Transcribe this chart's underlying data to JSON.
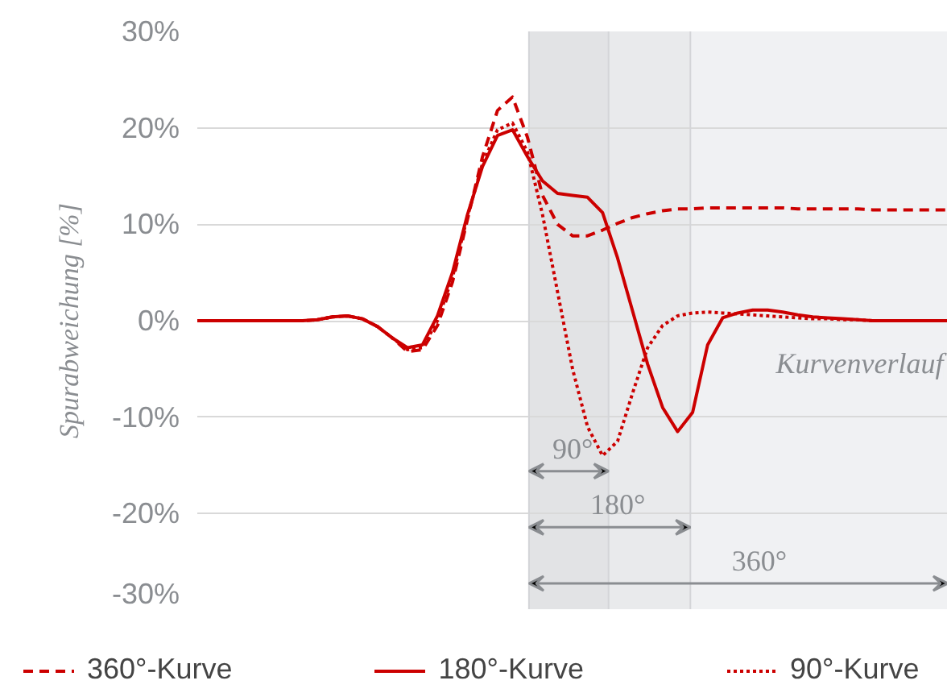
{
  "chart_data": {
    "type": "line",
    "ylabel": "Spurabweichung [%]",
    "categories": [
      null,
      null,
      null,
      null,
      null,
      null,
      null,
      null,
      null,
      null,
      null,
      null,
      null,
      null,
      null,
      null,
      null,
      null,
      null,
      null,
      null,
      null,
      null,
      null,
      null,
      null,
      null,
      null,
      null,
      null,
      null,
      null,
      null,
      null,
      null,
      null,
      null,
      null,
      null,
      null,
      null,
      null,
      null,
      null,
      null,
      null,
      null,
      null,
      null,
      null,
      null
    ],
    "ylim": [
      -30,
      30
    ],
    "yticks": [
      {
        "value": 30,
        "label": "30%"
      },
      {
        "value": 20,
        "label": "20%"
      },
      {
        "value": 10,
        "label": "10%"
      },
      {
        "value": 0,
        "label": "0%"
      },
      {
        "value": -10,
        "label": "-10%"
      },
      {
        "value": -20,
        "label": "-20%"
      },
      {
        "value": -30,
        "label": "-30%"
      }
    ],
    "grid": "y",
    "legend": "bottom",
    "series": [
      {
        "name": "360°-Kurve",
        "color": "#cc0000",
        "line_style": "dashed",
        "values": [
          0,
          0,
          0,
          0,
          0,
          0,
          0,
          0,
          0.1,
          0.4,
          0.5,
          0.2,
          -0.6,
          -1.8,
          -3.2,
          -3,
          -0.5,
          4,
          10.5,
          17,
          21.8,
          23.2,
          19,
          13,
          10,
          8.8,
          8.8,
          9.4,
          10.1,
          10.7,
          11.1,
          11.4,
          11.6,
          11.6,
          11.7,
          11.7,
          11.7,
          11.7,
          11.7,
          11.7,
          11.6,
          11.6,
          11.6,
          11.6,
          11.6,
          11.5,
          11.5,
          11.5,
          11.5,
          11.5,
          11.5
        ]
      },
      {
        "name": "180°-Kurve",
        "color": "#cc0000",
        "line_style": "solid",
        "values": [
          0,
          0,
          0,
          0,
          0,
          0,
          0,
          0,
          0.1,
          0.4,
          0.5,
          0.2,
          -0.6,
          -1.8,
          -2.8,
          -2.5,
          0.5,
          5,
          11,
          16,
          19.2,
          19.8,
          17,
          14.5,
          13.2,
          13,
          12.8,
          11.2,
          6.5,
          1,
          -4.5,
          -9,
          -11.5,
          -9.5,
          -2.5,
          0.3,
          0.8,
          1.1,
          1.1,
          0.9,
          0.6,
          0.4,
          0.3,
          0.2,
          0.1,
          0,
          0,
          0,
          0,
          0,
          0
        ]
      },
      {
        "name": "90°-Kurve",
        "color": "#cc0000",
        "line_style": "dotted",
        "values": [
          0,
          0,
          0,
          0,
          0,
          0,
          0,
          0,
          0.1,
          0.4,
          0.5,
          0.2,
          -0.6,
          -1.8,
          -3,
          -2.8,
          0,
          4.5,
          10.8,
          16.3,
          19.8,
          20.5,
          17.5,
          11,
          3,
          -5,
          -11,
          -14,
          -12.5,
          -7.5,
          -2.8,
          -0.5,
          0.5,
          0.8,
          0.9,
          0.8,
          0.7,
          0.6,
          0.5,
          0.4,
          0.3,
          0.2,
          0.2,
          0.1,
          0.1,
          0,
          0,
          0,
          0,
          0,
          0
        ]
      }
    ],
    "annotations": [
      "90°",
      "180°",
      "360°",
      "Kurvenverlauf"
    ]
  }
}
